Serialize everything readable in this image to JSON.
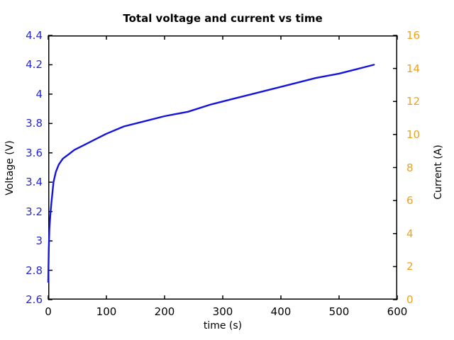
{
  "chart_data": {
    "type": "line",
    "title": "Total voltage and current vs time",
    "xlabel": "time (s)",
    "ylabel_left": "Voltage (V)",
    "ylabel_right": "Current (A)",
    "xlim": [
      0,
      600
    ],
    "ylim_left": [
      2.6,
      4.4
    ],
    "ylim_right": [
      0,
      16
    ],
    "grid": false,
    "legend": "none",
    "tick_style": "inward, mirrored on top frame",
    "colors": {
      "voltage_line": "#1414dc",
      "left_axis_labels": "#2828c8",
      "right_axis_labels": "#eda21f",
      "frame": "#000000",
      "background": "#ffffff"
    },
    "x_ticks": [
      {
        "value": 0,
        "label": "0"
      },
      {
        "value": 100,
        "label": "100"
      },
      {
        "value": 200,
        "label": "200"
      },
      {
        "value": 300,
        "label": "300"
      },
      {
        "value": 400,
        "label": "400"
      },
      {
        "value": 500,
        "label": "500"
      },
      {
        "value": 600,
        "label": "600"
      }
    ],
    "y_ticks_left": [
      {
        "value": 2.6,
        "label": "2.6"
      },
      {
        "value": 2.8,
        "label": "2.8"
      },
      {
        "value": 3.0,
        "label": "3"
      },
      {
        "value": 3.2,
        "label": "3.2"
      },
      {
        "value": 3.4,
        "label": "3.4"
      },
      {
        "value": 3.6,
        "label": "3.6"
      },
      {
        "value": 3.8,
        "label": "3.8"
      },
      {
        "value": 4.0,
        "label": "4"
      },
      {
        "value": 4.2,
        "label": "4.2"
      },
      {
        "value": 4.4,
        "label": "4.4"
      }
    ],
    "y_ticks_right": [
      {
        "value": 0,
        "label": "0"
      },
      {
        "value": 2,
        "label": "2"
      },
      {
        "value": 4,
        "label": "4"
      },
      {
        "value": 6,
        "label": "6"
      },
      {
        "value": 8,
        "label": "8"
      },
      {
        "value": 10,
        "label": "10"
      },
      {
        "value": 12,
        "label": "12"
      },
      {
        "value": 14,
        "label": "14"
      },
      {
        "value": 16,
        "label": "16"
      }
    ],
    "x": [
      0,
      1,
      2,
      4,
      6,
      9,
      13,
      18,
      25,
      35,
      45,
      60,
      80,
      100,
      130,
      160,
      200,
      240,
      280,
      320,
      350,
      380,
      420,
      460,
      500,
      530,
      560
    ],
    "series": [
      {
        "name": "Total voltage",
        "axis": "left",
        "color": "#1414dc",
        "values": [
          2.72,
          2.95,
          3.08,
          3.2,
          3.28,
          3.4,
          3.47,
          3.52,
          3.56,
          3.59,
          3.62,
          3.65,
          3.69,
          3.73,
          3.78,
          3.81,
          3.85,
          3.88,
          3.93,
          3.97,
          4.0,
          4.03,
          4.07,
          4.11,
          4.14,
          4.17,
          4.2
        ]
      }
    ]
  }
}
